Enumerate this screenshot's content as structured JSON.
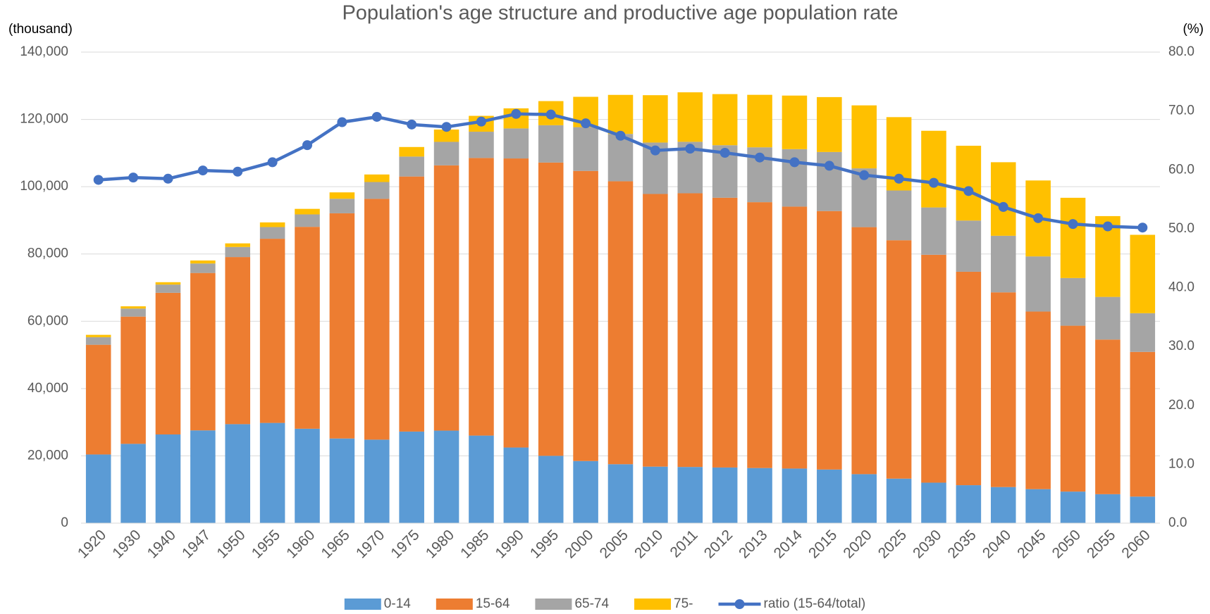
{
  "chart_data": {
    "type": "bar",
    "stacked": true,
    "title": "Population's age structure and productive age population rate",
    "y_label": "(thousand)",
    "y2_label": "(%)",
    "categories": [
      "1920",
      "1930",
      "1940",
      "1947",
      "1950",
      "1955",
      "1960",
      "1965",
      "1970",
      "1975",
      "1980",
      "1985",
      "1990",
      "1995",
      "2000",
      "2005",
      "2010",
      "2011",
      "2012",
      "2013",
      "2014",
      "2015",
      "2020",
      "2025",
      "2030",
      "2035",
      "2040",
      "2045",
      "2050",
      "2055",
      "2060"
    ],
    "series": [
      {
        "name": "0-14",
        "color": "#5b9bd5",
        "values": [
          20416,
          23579,
          26369,
          27576,
          29428,
          29798,
          28067,
          25166,
          24823,
          27221,
          27507,
          26033,
          22486,
          20014,
          18472,
          17521,
          16803,
          16705,
          16547,
          16390,
          16233,
          15945,
          14568,
          13240,
          12039,
          11287,
          10732,
          10116,
          9387,
          8614,
          7900
        ]
      },
      {
        "name": "15-64",
        "color": "#ed7d31",
        "values": [
          32605,
          37807,
          42096,
          46783,
          49658,
          54729,
          60002,
          66928,
          71566,
          75807,
          78835,
          82506,
          85904,
          87165,
          86220,
          84092,
          81032,
          81342,
          80175,
          79010,
          77850,
          76818,
          73408,
          70845,
          67730,
          63430,
          57866,
          52775,
          49297,
          45951,
          43000
        ]
      },
      {
        "name": "65-74",
        "color": "#a5a5a5",
        "values": [
          2254,
          2397,
          2448,
          2819,
          2999,
          3475,
          3700,
          4327,
          4997,
          5927,
          6987,
          7804,
          8926,
          11091,
          13007,
          14070,
          15290,
          15295,
          15604,
          16302,
          17080,
          17546,
          17472,
          14788,
          14065,
          15220,
          16814,
          16389,
          14174,
          12685,
          11500
        ]
      },
      {
        "name": "75-",
        "color": "#ffc000",
        "values": [
          691,
          667,
          703,
          894,
          1070,
          1388,
          1642,
          1894,
          2245,
          2841,
          3660,
          4712,
          5973,
          7170,
          9012,
          11602,
          14072,
          14708,
          15193,
          15603,
          15917,
          16322,
          18720,
          21800,
          22784,
          22235,
          21862,
          22570,
          23846,
          24009,
          23300
        ]
      },
      {
        "name": "ratio (15-64/total)",
        "color": "#4472c4",
        "axis": "y2",
        "type": "line",
        "values": [
          58.3,
          58.7,
          58.5,
          59.9,
          59.7,
          61.3,
          64.2,
          68.1,
          69.0,
          67.7,
          67.3,
          68.2,
          69.5,
          69.4,
          67.9,
          65.8,
          63.3,
          63.6,
          62.9,
          62.1,
          61.3,
          60.7,
          59.1,
          58.5,
          57.8,
          56.4,
          53.7,
          51.8,
          50.8,
          50.4,
          50.2
        ]
      }
    ],
    "ylim": [
      0,
      140000
    ],
    "yticks": [
      0,
      {
        "value": 20000,
        "label": "20,000"
      },
      {
        "value": 40000,
        "label": "40,000"
      },
      {
        "value": 60000,
        "label": "60,000"
      },
      {
        "value": 80000,
        "label": "80,000"
      },
      {
        "value": 100000,
        "label": "100,000"
      },
      {
        "value": 120000,
        "label": "120,000"
      },
      {
        "value": 140000,
        "label": "140,000"
      }
    ],
    "y2lim": [
      0,
      80
    ],
    "y2ticks": [
      {
        "value": 0,
        "label": "0.0"
      },
      {
        "value": 10,
        "label": "10.0"
      },
      {
        "value": 20,
        "label": "20.0"
      },
      {
        "value": 30,
        "label": "30.0"
      },
      {
        "value": 40,
        "label": "40.0"
      },
      {
        "value": 50,
        "label": "50.0"
      },
      {
        "value": 60,
        "label": "60.0"
      },
      {
        "value": 70,
        "label": "70.0"
      },
      {
        "value": 80,
        "label": "80.0"
      }
    ],
    "grid": true,
    "legend": "bottom"
  }
}
